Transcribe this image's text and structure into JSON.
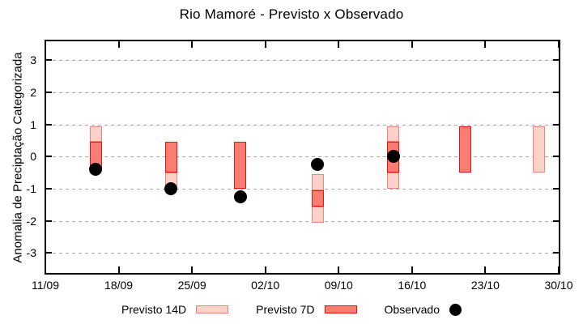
{
  "chart_data": {
    "type": "candlestick",
    "title": "Rio Mamoré - Previsto x Observado",
    "ylabel": "Anomalia de Preciptação Categorizada",
    "xlabel": "",
    "grid": "horizontal-dashed",
    "legend_position": "bottom-center-outside",
    "ylim": [
      -3.64,
      3.61
    ],
    "yticks": [
      3,
      2,
      1,
      0,
      -1,
      -2,
      -3
    ],
    "xlim_days": [
      0,
      49
    ],
    "xtick_labels": [
      "11/09",
      "18/09",
      "25/09",
      "02/10",
      "09/10",
      "16/10",
      "23/10",
      "30/10"
    ],
    "xtick_days": [
      0,
      7,
      14,
      21,
      28,
      35,
      42,
      49
    ],
    "series_colors": {
      "previsto14": {
        "fill": "#fbd1ca",
        "border": "#ef8577"
      },
      "previsto7": {
        "fill": "#fa7d73",
        "border": "#ee1105"
      },
      "observado": {
        "fill": "#000000"
      }
    },
    "bars": [
      {
        "date": "16/09",
        "day": 4.8,
        "segments": [
          {
            "series": "previsto14",
            "from": 0.95,
            "to": 0.45
          },
          {
            "series": "previsto7",
            "from": 0.45,
            "to": -0.45
          }
        ],
        "observed": -0.4
      },
      {
        "date": "23/09",
        "day": 12.0,
        "segments": [
          {
            "series": "previsto7",
            "from": 0.45,
            "to": -0.5
          },
          {
            "series": "previsto14",
            "from": -0.5,
            "to": -0.95
          }
        ],
        "observed": -1.0
      },
      {
        "date": "30/09",
        "day": 18.6,
        "segments": [
          {
            "series": "previsto7",
            "from": 0.45,
            "to": -1.0
          }
        ],
        "observed": -1.25
      },
      {
        "date": "07/10",
        "day": 26.0,
        "segments": [
          {
            "series": "previsto14",
            "from": -0.55,
            "to": -1.05
          },
          {
            "series": "previsto7",
            "from": -1.05,
            "to": -1.55
          },
          {
            "series": "previsto14",
            "from": -1.55,
            "to": -2.05
          }
        ],
        "observed": -0.25
      },
      {
        "date": "14/10",
        "day": 33.2,
        "segments": [
          {
            "series": "previsto14",
            "from": 0.95,
            "to": 0.45
          },
          {
            "series": "previsto7",
            "from": 0.45,
            "to": -0.5
          },
          {
            "series": "previsto14",
            "from": -0.5,
            "to": -1.0
          }
        ],
        "observed": 0.0
      },
      {
        "date": "21/10",
        "day": 40.1,
        "segments": [
          {
            "series": "previsto7",
            "from": 0.95,
            "to": -0.5
          }
        ],
        "observed": null
      },
      {
        "date": "28/10",
        "day": 47.1,
        "segments": [
          {
            "series": "previsto14",
            "from": 0.95,
            "to": -0.5
          }
        ],
        "observed": null
      }
    ],
    "legend": [
      {
        "label": "Previsto 14D",
        "series": "previsto14",
        "marker": "box"
      },
      {
        "label": "Previsto 7D",
        "series": "previsto7",
        "marker": "box"
      },
      {
        "label": "Observado",
        "series": "observado",
        "marker": "dot"
      }
    ]
  }
}
